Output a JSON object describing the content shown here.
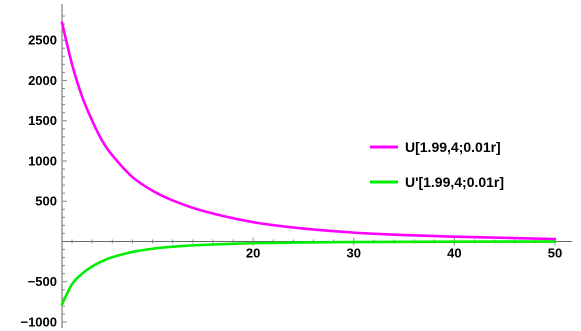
{
  "chart_data": {
    "type": "line",
    "title": "",
    "xlabel": "",
    "ylabel": "",
    "xlim": [
      1,
      50.5
    ],
    "ylim": [
      -1000,
      2900
    ],
    "x_ticks": [
      20,
      30,
      40,
      50
    ],
    "y_ticks": [
      -1000,
      -500,
      500,
      1000,
      1500,
      2000,
      2500
    ],
    "x_tick_labels": [
      "20",
      "30",
      "40",
      "50"
    ],
    "y_tick_labels": [
      "−1000",
      "−500",
      "500",
      "1000",
      "1500",
      "2000",
      "2500"
    ],
    "grid": false,
    "legend_position": "right",
    "series": [
      {
        "name": "U[1.99,4;0.01r]",
        "color": "#ff00ff",
        "x": [
          1,
          2,
          3,
          4,
          5,
          6,
          8,
          10,
          12,
          15,
          20,
          25,
          30,
          35,
          40,
          45,
          50
        ],
        "y": [
          2720,
          2200,
          1800,
          1500,
          1250,
          1070,
          800,
          630,
          510,
          380,
          240,
          160,
          110,
          80,
          60,
          45,
          30
        ]
      },
      {
        "name": "U'[1.99,4;0.01r]",
        "color": "#00ee00",
        "x": [
          1,
          2,
          3,
          4,
          5,
          6,
          8,
          10,
          12,
          15,
          20,
          25,
          30,
          35,
          40,
          45,
          50
        ],
        "y": [
          -780,
          -530,
          -400,
          -310,
          -245,
          -195,
          -130,
          -90,
          -65,
          -42,
          -22,
          -12,
          -7,
          -4,
          -2,
          -1,
          -1
        ]
      }
    ]
  }
}
